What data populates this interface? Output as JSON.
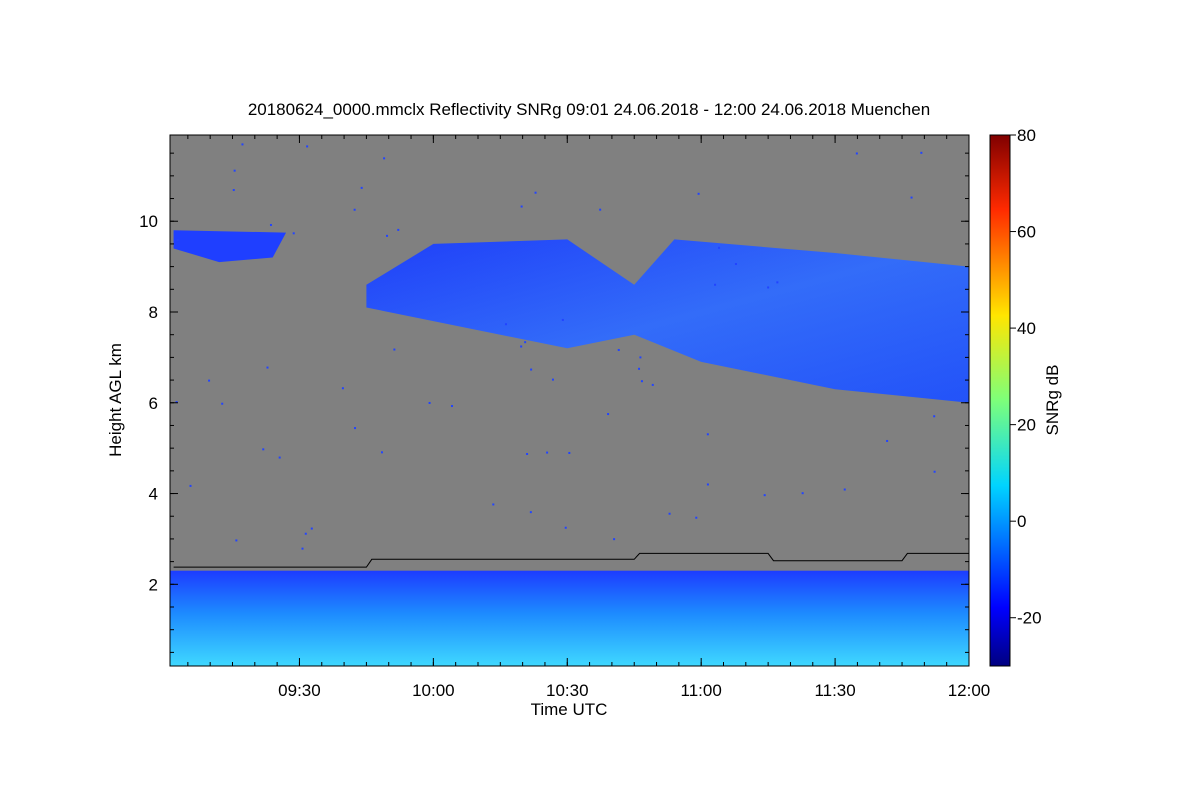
{
  "chart_data": {
    "type": "heatmap",
    "title": "20180624_0000.mmclx Reflectivity SNRg   09:01 24.06.2018 - 12:00 24.06.2018 Muenchen",
    "xlabel": "Time UTC",
    "ylabel": "Height AGL km",
    "x_range": [
      "09:01",
      "12:00"
    ],
    "x_ticks": [
      "09:30",
      "10:00",
      "10:30",
      "11:00",
      "11:30",
      "12:00"
    ],
    "y_range": [
      0.2,
      11.9
    ],
    "y_ticks": [
      2,
      4,
      6,
      8,
      10
    ],
    "colorbar": {
      "label": "SNRg dB",
      "range": [
        -30,
        80
      ],
      "ticks": [
        -20,
        0,
        20,
        40,
        60,
        80
      ],
      "colormap": "jet"
    },
    "background_color": "#808080",
    "cloud_layer": {
      "description_time": [
        "09:01",
        "12:00"
      ],
      "base_km_points": [
        [
          9.03,
          9.6
        ],
        [
          9.25,
          9.2
        ],
        [
          9.75,
          8.1
        ],
        [
          10.5,
          7.2
        ],
        [
          10.75,
          7.5
        ],
        [
          11.0,
          6.9
        ],
        [
          11.5,
          6.3
        ],
        [
          12.0,
          6.0
        ]
      ],
      "top_km_points": [
        [
          9.03,
          9.8
        ],
        [
          9.4,
          9.7
        ],
        [
          9.75,
          8.6
        ],
        [
          10.0,
          9.5
        ],
        [
          10.5,
          9.6
        ],
        [
          10.75,
          8.6
        ],
        [
          10.9,
          9.6
        ],
        [
          11.5,
          9.3
        ],
        [
          12.0,
          9.0
        ]
      ]
    },
    "boundary_line": {
      "color": "#000000",
      "points": [
        [
          9.03,
          2.38
        ],
        [
          9.75,
          2.38
        ],
        [
          9.77,
          2.55
        ],
        [
          10.75,
          2.55
        ],
        [
          10.77,
          2.68
        ],
        [
          11.25,
          2.68
        ],
        [
          11.27,
          2.52
        ],
        [
          11.75,
          2.52
        ],
        [
          11.77,
          2.68
        ],
        [
          12.0,
          2.68
        ]
      ]
    },
    "grid": false,
    "legend": "colorbar-right"
  }
}
